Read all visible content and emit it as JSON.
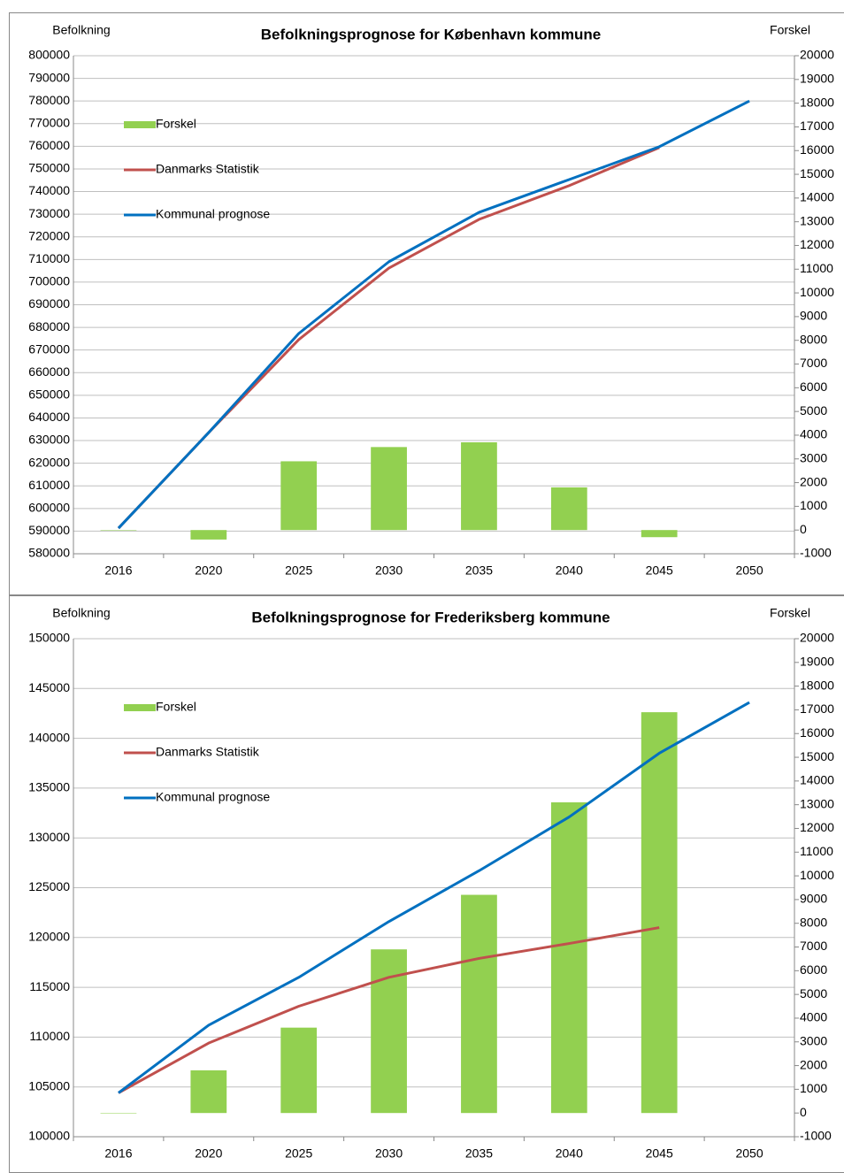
{
  "chart_data": [
    {
      "type": "combo",
      "title": "Befolkningsprognose for København kommune",
      "ylabel": "Befolkning",
      "y2label": "Forskel",
      "categories": [
        "2016",
        "2020",
        "2025",
        "2030",
        "2035",
        "2040",
        "2045",
        "2050"
      ],
      "ylim": [
        580000,
        800000
      ],
      "yticks": [
        580000,
        590000,
        600000,
        610000,
        620000,
        630000,
        640000,
        650000,
        660000,
        670000,
        680000,
        690000,
        700000,
        710000,
        720000,
        730000,
        740000,
        750000,
        760000,
        770000,
        780000,
        790000,
        800000
      ],
      "y2lim": [
        -1000,
        20000
      ],
      "y2ticks": [
        -1000,
        0,
        1000,
        2000,
        3000,
        4000,
        5000,
        6000,
        7000,
        8000,
        9000,
        10000,
        11000,
        12000,
        13000,
        14000,
        15000,
        16000,
        17000,
        18000,
        19000,
        20000
      ],
      "grid": true,
      "legend": "upper left",
      "series": [
        {
          "name": "Forskel",
          "type": "bar",
          "axis": "y2",
          "color": "#92d050",
          "values": [
            0,
            -400,
            2900,
            3500,
            3700,
            1800,
            -300,
            null
          ]
        },
        {
          "name": "Danmarks Statistik",
          "type": "line",
          "color": "#c0504d",
          "values": [
            591300,
            633500,
            674600,
            706200,
            727700,
            742600,
            759400,
            null
          ]
        },
        {
          "name": "Kommunal prognose",
          "type": "line",
          "color": "#0070c0",
          "values": [
            591300,
            633500,
            677300,
            709000,
            730800,
            745300,
            759800,
            780000
          ]
        }
      ]
    },
    {
      "type": "combo",
      "title": "Befolkningsprognose for Frederiksberg kommune",
      "ylabel": "Befolkning",
      "y2label": "Forskel",
      "categories": [
        "2016",
        "2020",
        "2025",
        "2030",
        "2035",
        "2040",
        "2045",
        "2050"
      ],
      "ylim": [
        100000,
        150000
      ],
      "yticks": [
        100000,
        105000,
        110000,
        115000,
        120000,
        125000,
        130000,
        135000,
        140000,
        145000,
        150000
      ],
      "y2lim": [
        -1000,
        20000
      ],
      "y2ticks": [
        -1000,
        0,
        1000,
        2000,
        3000,
        4000,
        5000,
        6000,
        7000,
        8000,
        9000,
        10000,
        11000,
        12000,
        13000,
        14000,
        15000,
        16000,
        17000,
        18000,
        19000,
        20000
      ],
      "grid": true,
      "legend": "upper left",
      "series": [
        {
          "name": "Forskel",
          "type": "bar",
          "axis": "y2",
          "color": "#92d050",
          "values": [
            0,
            1800,
            3600,
            6900,
            9200,
            13100,
            16900,
            null
          ]
        },
        {
          "name": "Danmarks Statistik",
          "type": "line",
          "color": "#c0504d",
          "values": [
            104400,
            109400,
            113100,
            116000,
            117900,
            119400,
            121000,
            null
          ]
        },
        {
          "name": "Kommunal prognose",
          "type": "line",
          "color": "#0070c0",
          "values": [
            104400,
            111200,
            116000,
            121600,
            126700,
            132100,
            138500,
            143600
          ]
        }
      ]
    }
  ]
}
